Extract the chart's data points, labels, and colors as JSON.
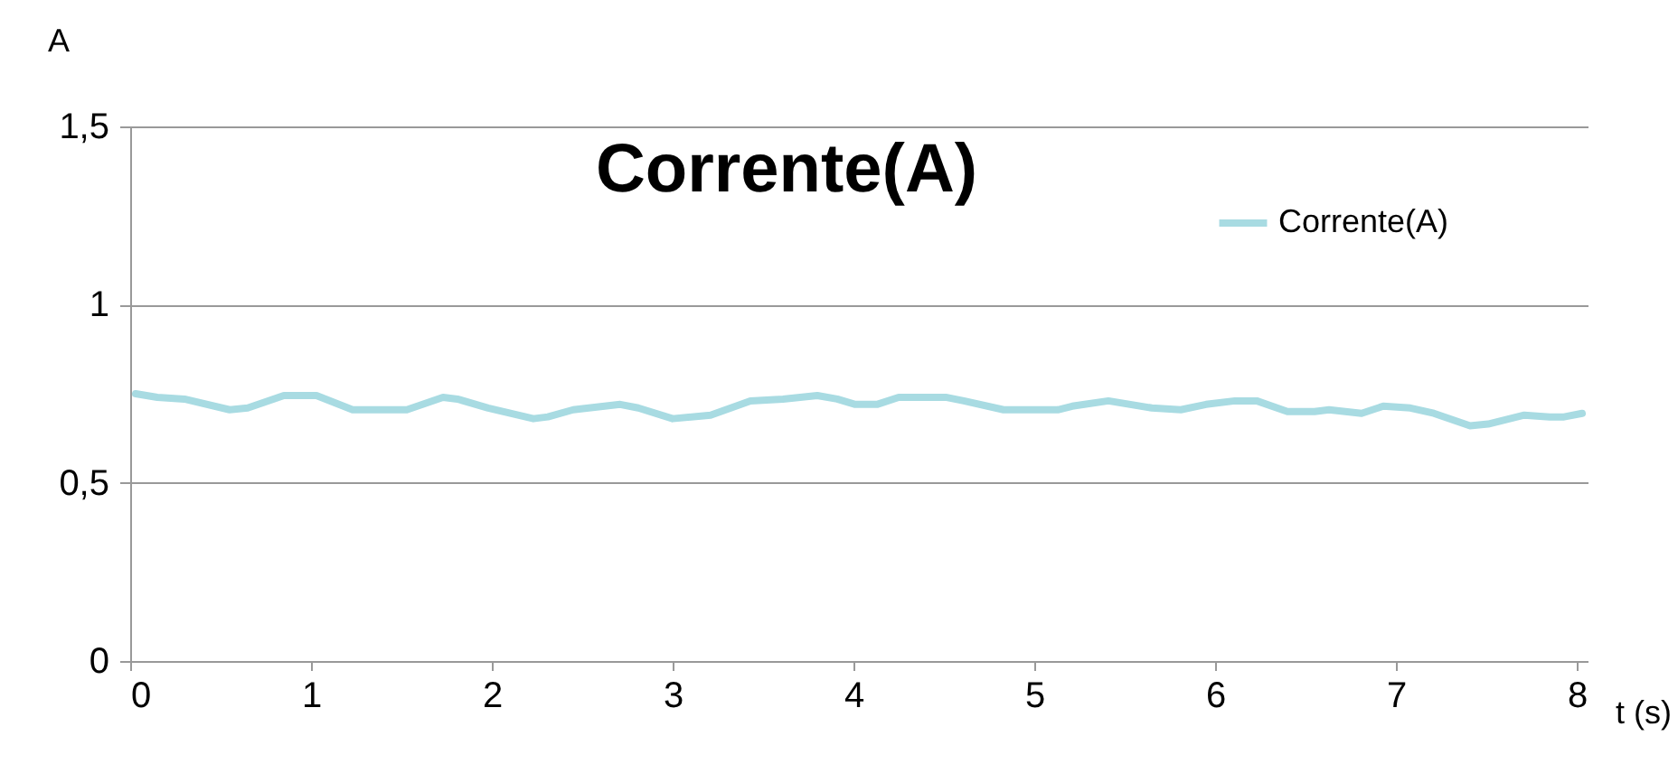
{
  "chart_data": {
    "type": "line",
    "title": "Corrente(A)",
    "xlabel": "t (s)",
    "ylabel": "A",
    "x": [
      0.03,
      0.15,
      0.3,
      0.55,
      0.65,
      0.85,
      1.03,
      1.23,
      1.53,
      1.73,
      1.81,
      1.98,
      2.23,
      2.31,
      2.45,
      2.71,
      2.81,
      3.0,
      3.21,
      3.43,
      3.61,
      3.8,
      3.91,
      4.01,
      4.13,
      4.25,
      4.51,
      4.61,
      4.83,
      5.13,
      5.21,
      5.41,
      5.65,
      5.81,
      5.95,
      6.11,
      6.23,
      6.4,
      6.55,
      6.63,
      6.81,
      6.93,
      7.08,
      7.21,
      7.41,
      7.51,
      7.71,
      7.85,
      7.93,
      8.03
    ],
    "series": [
      {
        "name": "Corrente(A)",
        "color": "#a8dbe2",
        "values": [
          0.75,
          0.74,
          0.735,
          0.705,
          0.71,
          0.745,
          0.745,
          0.705,
          0.705,
          0.74,
          0.735,
          0.71,
          0.68,
          0.685,
          0.705,
          0.72,
          0.71,
          0.68,
          0.69,
          0.73,
          0.735,
          0.745,
          0.735,
          0.72,
          0.72,
          0.74,
          0.74,
          0.73,
          0.705,
          0.705,
          0.715,
          0.73,
          0.71,
          0.705,
          0.72,
          0.73,
          0.73,
          0.7,
          0.7,
          0.705,
          0.695,
          0.715,
          0.71,
          0.695,
          0.66,
          0.665,
          0.69,
          0.685,
          0.685,
          0.695
        ]
      }
    ],
    "xlim": [
      0,
      8.06
    ],
    "xticks": [
      0,
      1,
      2,
      3,
      4,
      5,
      6,
      7,
      8
    ],
    "ylim": [
      0,
      1.5
    ],
    "yticks": [
      0,
      {
        "value": 0.5,
        "label": "0,5"
      },
      1,
      {
        "value": 1.5,
        "label": "1,5"
      }
    ],
    "grid": "y",
    "legend": "top right",
    "marker": "none",
    "line_style": "solid"
  }
}
